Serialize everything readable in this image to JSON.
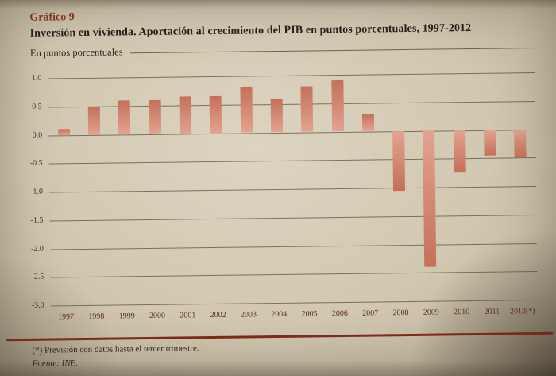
{
  "page": {
    "kicker": "Gráfico 9",
    "title": "Inversión en vivienda. Aportación al crecimiento del PIB en puntos porcentuales, 1997-2012",
    "subtitle": "En puntos porcentuales",
    "footnote": "(*)  Previsión con datos hasta el tercer trimestre.",
    "source": "Fuente: INE."
  },
  "colors": {
    "accent": "#8e3322",
    "bottom_rule": "#7e2a1a",
    "bar_dark": "#c4705a",
    "bar_light": "#e2a390"
  },
  "chart_data": {
    "type": "bar",
    "title": "Inversión en vivienda. Aportación al crecimiento del PIB en puntos porcentuales, 1997-2012",
    "ylabel": "En puntos porcentuales",
    "categories": [
      "1997",
      "1998",
      "1999",
      "2000",
      "2001",
      "2002",
      "2003",
      "2004",
      "2005",
      "2006",
      "2007",
      "2008",
      "2009",
      "2010",
      "2011",
      "2012(*)"
    ],
    "values": [
      0.1,
      0.5,
      0.6,
      0.6,
      0.65,
      0.65,
      0.8,
      0.6,
      0.8,
      0.9,
      0.3,
      -1.05,
      -2.4,
      -0.75,
      -0.45,
      -0.5
    ],
    "ylim": [
      -3.0,
      1.0
    ],
    "yticks": [
      1.0,
      0.5,
      0.0,
      -0.5,
      -1.0,
      -1.5,
      -2.0,
      -2.5,
      -3.0
    ],
    "grid": true,
    "legend": null
  }
}
